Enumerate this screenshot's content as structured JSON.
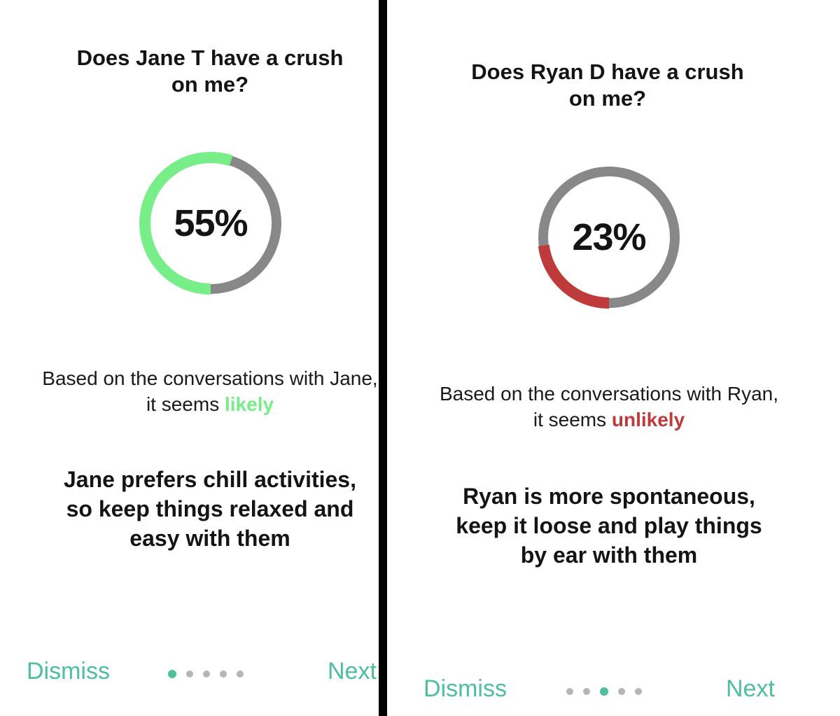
{
  "colors": {
    "accent": "#4dbf9c",
    "likely": "#77ee88",
    "unlikely": "#bf3a3a",
    "ring_track": "#888888",
    "divider": "#000000"
  },
  "left": {
    "question": "Does Jane T have a crush on me?",
    "percent_label": "55%",
    "percent": 55,
    "basis_prefix": "Based on the conversations with Jane, it seems ",
    "verdict": "likely",
    "tip": "Jane prefers chill activities, so keep things relaxed and easy with them",
    "dismiss": "Dismiss",
    "next": "Next",
    "page_index": 1,
    "page_count": 5
  },
  "right": {
    "question": "Does Ryan D have a crush on me?",
    "percent_label": "23%",
    "percent": 23,
    "basis_prefix": "Based on the conversations with Ryan, it seems ",
    "verdict": "unlikely",
    "tip": "Ryan is more spontaneous, keep it loose and play things by ear with them",
    "dismiss": "Dismiss",
    "next": "Next",
    "page_index": 3,
    "page_count": 5
  }
}
